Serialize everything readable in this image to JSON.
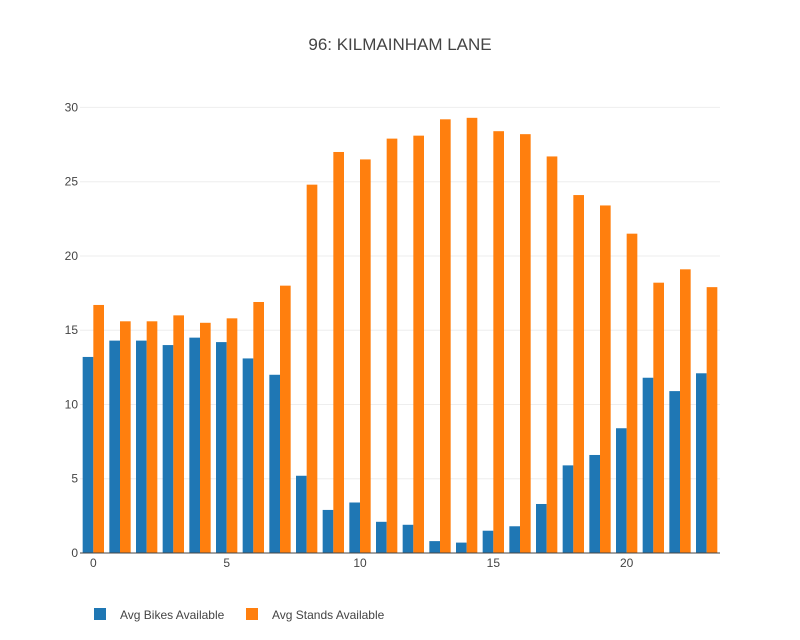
{
  "chart_data": {
    "type": "bar",
    "title": "96: KILMAINHAM LANE",
    "xlabel": "",
    "ylabel": "",
    "x": [
      0,
      1,
      2,
      3,
      4,
      5,
      6,
      7,
      8,
      9,
      10,
      11,
      12,
      13,
      14,
      15,
      16,
      17,
      18,
      19,
      20,
      21,
      22,
      23
    ],
    "xticks": [
      0,
      5,
      10,
      15,
      20
    ],
    "yticks": [
      0,
      5,
      10,
      15,
      20,
      25,
      30
    ],
    "xlim": [
      -0.5,
      23.5
    ],
    "ylim": [
      0,
      30.5
    ],
    "grid": true,
    "legend_position": "bottom-left",
    "series": [
      {
        "name": "Avg Bikes Available",
        "color": "#1f77b4",
        "values": [
          13.2,
          14.3,
          14.3,
          14.0,
          14.5,
          14.2,
          13.1,
          12.0,
          5.2,
          2.9,
          3.4,
          2.1,
          1.9,
          0.8,
          0.7,
          1.5,
          1.8,
          3.3,
          5.9,
          6.6,
          8.4,
          11.8,
          10.9,
          12.1
        ]
      },
      {
        "name": "Avg Stands Available",
        "color": "#ff7f0e",
        "values": [
          16.7,
          15.6,
          15.6,
          16.0,
          15.5,
          15.8,
          16.9,
          18.0,
          24.8,
          27.0,
          26.5,
          27.9,
          28.1,
          29.2,
          29.3,
          28.4,
          28.2,
          26.7,
          24.1,
          23.4,
          21.5,
          18.2,
          19.1,
          17.9
        ]
      }
    ]
  }
}
